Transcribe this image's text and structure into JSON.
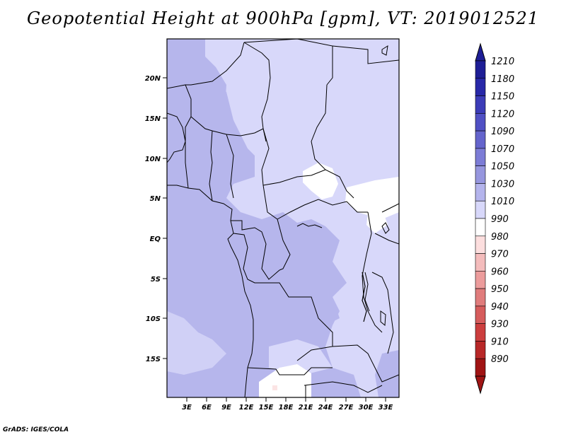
{
  "title": "Geopotential Height at 900hPa [gpm], VT: 2019012521",
  "credit": "GrADS: IGES/COLA",
  "map": {
    "lat_labels": [
      "20N",
      "15N",
      "10N",
      "5N",
      "EQ",
      "5S",
      "10S",
      "15S"
    ],
    "lon_labels": [
      "3E",
      "6E",
      "9E",
      "12E",
      "15E",
      "18E",
      "21E",
      "24E",
      "27E",
      "30E",
      "33E"
    ]
  },
  "colorbar": {
    "levels": [
      "1210",
      "1180",
      "1150",
      "1120",
      "1090",
      "1070",
      "1050",
      "1030",
      "1010",
      "990",
      "980",
      "970",
      "960",
      "950",
      "940",
      "930",
      "910",
      "890"
    ],
    "colors": [
      "#1e1e96",
      "#2828a8",
      "#3c3cb8",
      "#5050c4",
      "#6464cc",
      "#7c7cd6",
      "#9696de",
      "#b4b4ec",
      "#d8d8fa",
      "#ffffff",
      "#fcdede",
      "#f4bcbc",
      "#ec9c9c",
      "#e07c7c",
      "#d65c5c",
      "#cc3e3e",
      "#b82828",
      "#a01414"
    ]
  }
}
